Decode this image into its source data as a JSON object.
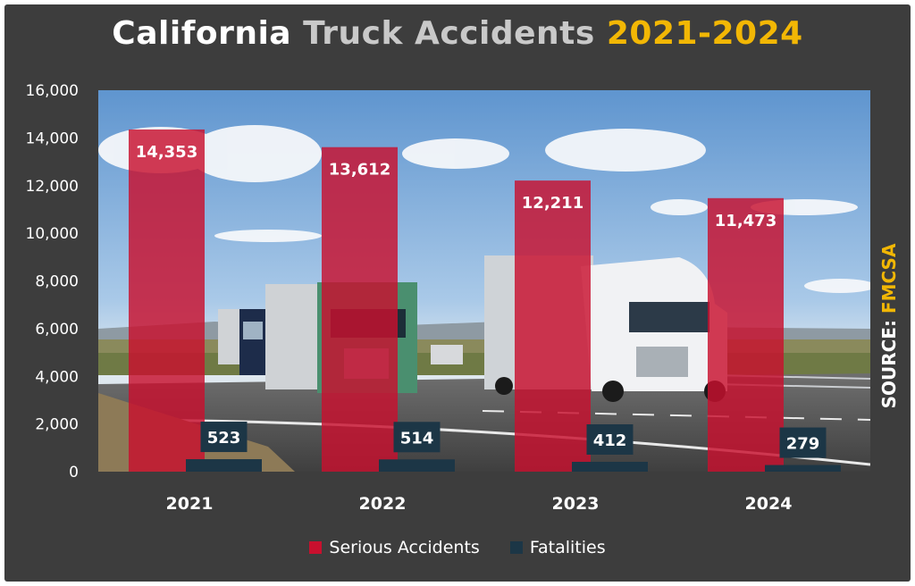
{
  "header": {
    "title_part1": "California",
    "title_part2": "Truck Accidents",
    "title_part3": "2021-2024"
  },
  "source": {
    "label": "SOURCE:",
    "value": "FMCSA"
  },
  "colors": {
    "frame_bg": "#3d3d3d",
    "serious": "#c8102e",
    "fatal": "#1c3646",
    "title_white": "#ffffff",
    "title_gray": "#c9c9c9",
    "accent_yellow": "#f2b705"
  },
  "chart_data": {
    "type": "bar",
    "title": "California Truck Accidents 2021-2024",
    "categories": [
      "2021",
      "2022",
      "2023",
      "2024"
    ],
    "series": [
      {
        "name": "Serious Accidents",
        "values": [
          14353,
          13612,
          12211,
          11473
        ]
      },
      {
        "name": "Fatalities",
        "values": [
          523,
          514,
          412,
          279
        ]
      }
    ],
    "data_labels": {
      "serious": [
        "14,353",
        "13,612",
        "12,211",
        "11,473"
      ],
      "fatal": [
        "523",
        "514",
        "412",
        "279"
      ]
    },
    "y_ticks": [
      "0",
      "2,000",
      "4,000",
      "6,000",
      "8,000",
      "10,000",
      "12,000",
      "14,000",
      "16,000"
    ],
    "ylim": [
      0,
      16000
    ],
    "grid": false,
    "legend_position": "bottom",
    "background_image": "highway-trucks-photo"
  }
}
